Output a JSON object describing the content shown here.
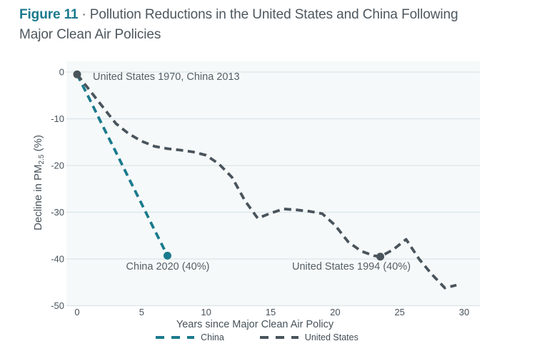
{
  "title": {
    "label": "Figure 11",
    "separator": "·",
    "text": "Pollution Reductions in the United States and China Following Major Clean Air Policies"
  },
  "colors": {
    "accent_teal": "#1b7a8d",
    "us_gray": "#49545c",
    "title_text": "#4d575e",
    "axis_text": "#47525a",
    "annotation_text": "#555f66",
    "gridline": "#d9e6ea",
    "plot_background": "#f6f9f9",
    "page_background": "#ffffff"
  },
  "chart_data": {
    "type": "line",
    "title": "Figure 11 · Pollution Reductions in the United States and China Following Major Clean Air Policies",
    "xlabel": "Years since Major Clean Air Policy",
    "ylabel": "Decline in PM2.5 (%)",
    "ylabel_pre": "Decline in PM",
    "ylabel_sub": "2.5",
    "ylabel_post": " (%)",
    "xlim": [
      0,
      30
    ],
    "ylim": [
      -50,
      0
    ],
    "xticks": [
      0,
      5,
      10,
      15,
      20,
      25,
      30
    ],
    "yticks": [
      0,
      -10,
      -20,
      -30,
      -40,
      -50
    ],
    "grid": true,
    "line_style": "dashed",
    "legend_position": "bottom",
    "series": [
      {
        "name": "China",
        "color": "#1b7a8d",
        "points": [
          [
            0,
            -0.5
          ],
          [
            1,
            -6
          ],
          [
            2,
            -11.6
          ],
          [
            3,
            -17.1
          ],
          [
            4,
            -22.7
          ],
          [
            5,
            -28.2
          ],
          [
            6,
            -33.8
          ],
          [
            7,
            -39.3
          ]
        ]
      },
      {
        "name": "United States",
        "color": "#49545c",
        "points": [
          [
            0,
            -0.5
          ],
          [
            1,
            -4
          ],
          [
            2,
            -7.5
          ],
          [
            3,
            -11
          ],
          [
            4,
            -13.2
          ],
          [
            5,
            -14.8
          ],
          [
            6,
            -15.9
          ],
          [
            7,
            -16.4
          ],
          [
            8,
            -16.7
          ],
          [
            9,
            -17.1
          ],
          [
            10,
            -17.8
          ],
          [
            11,
            -19.7
          ],
          [
            12,
            -22.5
          ],
          [
            13,
            -27.5
          ],
          [
            14,
            -31.3
          ],
          [
            15,
            -30.2
          ],
          [
            16,
            -29.3
          ],
          [
            17,
            -29.5
          ],
          [
            18,
            -29.8
          ],
          [
            19,
            -30.3
          ],
          [
            20,
            -32.8
          ],
          [
            21,
            -36.3
          ],
          [
            22,
            -38.3
          ],
          [
            23,
            -39.3
          ],
          [
            23.5,
            -39.5
          ],
          [
            24.5,
            -38
          ],
          [
            25.5,
            -35.8
          ],
          [
            26.5,
            -40
          ],
          [
            27.5,
            -43.3
          ],
          [
            28.5,
            -46.2
          ],
          [
            29.4,
            -45.6
          ]
        ]
      }
    ],
    "markers": [
      {
        "series": "start",
        "x": 0,
        "y": -0.5,
        "color": "#49545c"
      },
      {
        "series": "China",
        "x": 7,
        "y": -39.3,
        "color": "#1b7a8d"
      },
      {
        "series": "United States",
        "x": 23.5,
        "y": -39.5,
        "color": "#49545c"
      }
    ],
    "annotations": [
      {
        "id": "start",
        "text": "United States 1970, China 2013"
      },
      {
        "id": "china-end",
        "text": "China 2020 (40%)"
      },
      {
        "id": "us-1994",
        "text": "United States 1994 (40%)"
      }
    ]
  }
}
